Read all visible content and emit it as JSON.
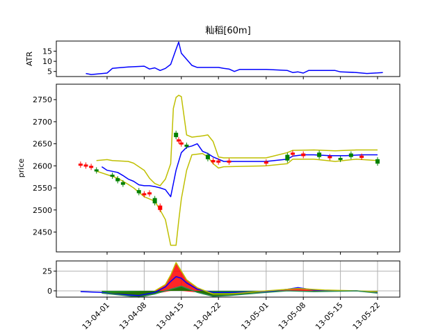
{
  "chart_data": [
    {
      "panel": "atr",
      "type": "line",
      "title": "籼稻[60m]",
      "ylabel": "ATR",
      "ylim": [
        2.5,
        20
      ],
      "yticks": [
        5,
        10,
        15
      ],
      "x_dates": [
        "13-04-01",
        "13-04-08",
        "13-04-15",
        "13-04-22",
        "13-05-01",
        "13-05-08",
        "13-05-15",
        "13-05-22"
      ],
      "series": [
        {
          "color": "#0000ff",
          "points": [
            [
              "13-03-28",
              4.0
            ],
            [
              "13-03-29",
              3.5
            ],
            [
              "13-04-01",
              4.2
            ],
            [
              "13-04-02",
              6.5
            ],
            [
              "13-04-03",
              6.8
            ],
            [
              "13-04-05",
              7.2
            ],
            [
              "13-04-08",
              7.6
            ],
            [
              "13-04-09",
              6.2
            ],
            [
              "13-04-10",
              6.8
            ],
            [
              "13-04-11",
              5.5
            ],
            [
              "13-04-12",
              6.5
            ],
            [
              "13-04-13",
              8.5
            ],
            [
              "13-04-14",
              16.0
            ],
            [
              "13-04-14.5",
              19.5
            ],
            [
              "13-04-15",
              14.0
            ],
            [
              "13-04-16",
              11.0
            ],
            [
              "13-04-17",
              8.0
            ],
            [
              "13-04-18",
              7.0
            ],
            [
              "13-04-22",
              7.0
            ],
            [
              "13-04-23",
              6.5
            ],
            [
              "13-04-24",
              6.2
            ],
            [
              "13-04-25",
              5.0
            ],
            [
              "13-04-26",
              6.0
            ],
            [
              "13-05-01",
              6.0
            ],
            [
              "13-05-05",
              5.5
            ],
            [
              "13-05-06",
              4.5
            ],
            [
              "13-05-07",
              4.8
            ],
            [
              "13-05-08",
              4.2
            ],
            [
              "13-05-09",
              5.5
            ],
            [
              "13-05-14",
              5.5
            ],
            [
              "13-05-15",
              4.8
            ],
            [
              "13-05-18",
              4.5
            ],
            [
              "13-05-20",
              4.0
            ],
            [
              "13-05-22",
              4.3
            ],
            [
              "13-05-23",
              4.5
            ]
          ]
        }
      ]
    },
    {
      "panel": "price",
      "type": "line",
      "ylabel": "price",
      "ylim": [
        2405,
        2785
      ],
      "yticks": [
        2450,
        2500,
        2550,
        2600,
        2650,
        2700,
        2750
      ],
      "candles": [
        [
          "13-03-27",
          2605,
          2604,
          "up"
        ],
        [
          "13-03-28",
          2603,
          2601,
          "down"
        ],
        [
          "13-03-29",
          2600,
          2598,
          "down"
        ],
        [
          "13-03-30",
          2592,
          2588,
          "green"
        ],
        [
          "13-04-02",
          2580,
          2576,
          "green"
        ],
        [
          "13-04-03",
          2572,
          2565,
          "green"
        ],
        [
          "13-04-04",
          2563,
          2557,
          "green"
        ],
        [
          "13-04-07",
          2545,
          2538,
          "green"
        ],
        [
          "13-04-08",
          2538,
          2536,
          "down"
        ],
        [
          "13-04-09",
          2540,
          2538,
          "down"
        ],
        [
          "13-04-10",
          2527,
          2515,
          "green"
        ],
        [
          "13-04-11",
          2510,
          2500,
          "down"
        ],
        [
          "13-04-14",
          2675,
          2665,
          "green"
        ],
        [
          "13-04-14.5",
          2660,
          2655,
          "down"
        ],
        [
          "13-04-15",
          2653,
          2650,
          "down"
        ],
        [
          "13-04-16",
          2648,
          2645,
          "green"
        ],
        [
          "13-04-20",
          2625,
          2615,
          "green"
        ],
        [
          "13-04-21",
          2613,
          2608,
          "down"
        ],
        [
          "13-04-22",
          2612,
          2608,
          "down"
        ],
        [
          "13-04-24",
          2612,
          2610,
          "down"
        ],
        [
          "13-05-01",
          2610,
          2605,
          "down"
        ],
        [
          "13-05-05",
          2625,
          2612,
          "green"
        ],
        [
          "13-05-06",
          2630,
          2625,
          "down"
        ],
        [
          "13-05-08",
          2628,
          2622,
          "down"
        ],
        [
          "13-05-11",
          2630,
          2620,
          "green"
        ],
        [
          "13-05-13",
          2622,
          2618,
          "down"
        ],
        [
          "13-05-15",
          2618,
          2615,
          "green"
        ],
        [
          "13-05-17",
          2628,
          2620,
          "green"
        ],
        [
          "13-05-19",
          2623,
          2618,
          "down"
        ],
        [
          "13-05-22",
          2615,
          2605,
          "green"
        ]
      ],
      "series": [
        {
          "color": "#0000ff",
          "points": [
            [
              "13-03-31",
              2598
            ],
            [
              "13-04-01",
              2590
            ],
            [
              "13-04-03",
              2585
            ],
            [
              "13-04-04",
              2578
            ],
            [
              "13-04-05",
              2570
            ],
            [
              "13-04-06",
              2565
            ],
            [
              "13-04-07",
              2557
            ],
            [
              "13-04-08",
              2555
            ],
            [
              "13-04-09",
              2555
            ],
            [
              "13-04-10",
              2553
            ],
            [
              "13-04-11",
              2550
            ],
            [
              "13-04-12",
              2546
            ],
            [
              "13-04-13",
              2530
            ],
            [
              "13-04-14",
              2590
            ],
            [
              "13-04-15",
              2630
            ],
            [
              "13-04-16",
              2642
            ],
            [
              "13-04-17",
              2645
            ],
            [
              "13-04-18",
              2650
            ],
            [
              "13-04-19",
              2633
            ],
            [
              "13-04-20",
              2628
            ],
            [
              "13-04-21",
              2620
            ],
            [
              "13-04-23",
              2610
            ],
            [
              "13-05-01",
              2610
            ],
            [
              "13-05-05",
              2615
            ],
            [
              "13-05-06",
              2622
            ],
            [
              "13-05-08",
              2625
            ],
            [
              "13-05-10",
              2625
            ],
            [
              "13-05-13",
              2623
            ],
            [
              "13-05-16",
              2623
            ],
            [
              "13-05-19",
              2625
            ],
            [
              "13-05-22",
              2625
            ]
          ]
        },
        {
          "color": "#bfbf00",
          "points": [
            [
              "13-03-30",
              2612
            ],
            [
              "13-04-01",
              2614
            ],
            [
              "13-04-02",
              2612
            ],
            [
              "13-04-05",
              2610
            ],
            [
              "13-04-06",
              2606
            ],
            [
              "13-04-08",
              2590
            ],
            [
              "13-04-09",
              2572
            ],
            [
              "13-04-10",
              2560
            ],
            [
              "13-04-11",
              2555
            ],
            [
              "13-04-12",
              2570
            ],
            [
              "13-04-13",
              2605
            ],
            [
              "13-04-13.5",
              2730
            ],
            [
              "13-04-14",
              2755
            ],
            [
              "13-04-14.5",
              2760
            ],
            [
              "13-04-15",
              2757
            ],
            [
              "13-04-16",
              2670
            ],
            [
              "13-04-17",
              2665
            ],
            [
              "13-04-19",
              2668
            ],
            [
              "13-04-20",
              2670
            ],
            [
              "13-04-21",
              2655
            ],
            [
              "13-04-22",
              2620
            ],
            [
              "13-04-23",
              2618
            ],
            [
              "13-05-01",
              2618
            ],
            [
              "13-05-05",
              2630
            ],
            [
              "13-05-06",
              2635
            ],
            [
              "13-05-10",
              2636
            ],
            [
              "13-05-14",
              2634
            ],
            [
              "13-05-18",
              2636
            ],
            [
              "13-05-22",
              2636
            ]
          ]
        },
        {
          "color": "#bfbf00",
          "points": [
            [
              "13-03-30",
              2588
            ],
            [
              "13-04-01",
              2580
            ],
            [
              "13-04-03",
              2572
            ],
            [
              "13-04-05",
              2558
            ],
            [
              "13-04-06",
              2550
            ],
            [
              "13-04-08",
              2530
            ],
            [
              "13-04-09",
              2525
            ],
            [
              "13-04-10",
              2520
            ],
            [
              "13-04-11",
              2500
            ],
            [
              "13-04-12",
              2478
            ],
            [
              "13-04-13",
              2420
            ],
            [
              "13-04-14",
              2420
            ],
            [
              "13-04-14.5",
              2475
            ],
            [
              "13-04-15",
              2525
            ],
            [
              "13-04-16",
              2590
            ],
            [
              "13-04-17",
              2625
            ],
            [
              "13-04-19",
              2628
            ],
            [
              "13-04-20",
              2620
            ],
            [
              "13-04-21",
              2605
            ],
            [
              "13-04-22",
              2595
            ],
            [
              "13-04-23",
              2598
            ],
            [
              "13-05-01",
              2600
            ],
            [
              "13-05-05",
              2605
            ],
            [
              "13-05-06",
              2615
            ],
            [
              "13-05-10",
              2615
            ],
            [
              "13-05-14",
              2610
            ],
            [
              "13-05-18",
              2615
            ],
            [
              "13-05-22",
              2612
            ]
          ]
        }
      ]
    },
    {
      "panel": "oscillator",
      "type": "line",
      "ylim": [
        -8,
        38
      ],
      "yticks": [
        0,
        25
      ],
      "grid": true,
      "series": [
        {
          "color": "#0000ff",
          "points": [
            [
              "13-03-27",
              -1
            ],
            [
              "13-03-31",
              -2
            ],
            [
              "13-04-02",
              -4
            ],
            [
              "13-04-07",
              -6
            ],
            [
              "13-04-10",
              -2
            ],
            [
              "13-04-12",
              5
            ],
            [
              "13-04-13",
              12
            ],
            [
              "13-04-14",
              18
            ],
            [
              "13-04-15",
              16
            ],
            [
              "13-04-16",
              10
            ],
            [
              "13-04-18",
              2
            ],
            [
              "13-04-21",
              -2
            ],
            [
              "13-04-24",
              -2
            ],
            [
              "13-05-01",
              -1
            ],
            [
              "13-05-05",
              2
            ],
            [
              "13-05-07",
              4
            ],
            [
              "13-05-10",
              1
            ],
            [
              "13-05-15",
              0
            ],
            [
              "13-05-18",
              0
            ],
            [
              "13-05-22",
              -2
            ]
          ]
        },
        {
          "color": "#bfbf00",
          "points": [
            [
              "13-04-10",
              0
            ],
            [
              "13-04-12",
              8
            ],
            [
              "13-04-13",
              20
            ],
            [
              "13-04-14",
              36
            ],
            [
              "13-04-15",
              25
            ],
            [
              "13-04-16",
              14
            ],
            [
              "13-04-18",
              4
            ],
            [
              "13-04-21",
              -4
            ],
            [
              "13-04-24",
              -4
            ],
            [
              "13-05-01",
              0
            ],
            [
              "13-05-05",
              2
            ],
            [
              "13-05-07",
              3
            ],
            [
              "13-05-12",
              1
            ],
            [
              "13-05-18",
              0
            ],
            [
              "13-05-22",
              -1
            ]
          ]
        },
        {
          "color": "#2e8b57",
          "points": [
            [
              "13-03-31",
              -3
            ],
            [
              "13-04-03",
              -5
            ],
            [
              "13-04-07",
              -8
            ],
            [
              "13-04-10",
              -4
            ],
            [
              "13-04-13",
              2
            ],
            [
              "13-04-15",
              6
            ],
            [
              "13-04-18",
              -2
            ],
            [
              "13-04-21",
              -7
            ],
            [
              "13-04-24",
              -6
            ],
            [
              "13-05-01",
              -2
            ],
            [
              "13-05-05",
              0
            ],
            [
              "13-05-10",
              -1
            ],
            [
              "13-05-18",
              0
            ],
            [
              "13-05-22",
              -3
            ]
          ]
        }
      ],
      "fill": {
        "positive_color": "#ff0000",
        "negative_color": "#008000"
      }
    }
  ]
}
